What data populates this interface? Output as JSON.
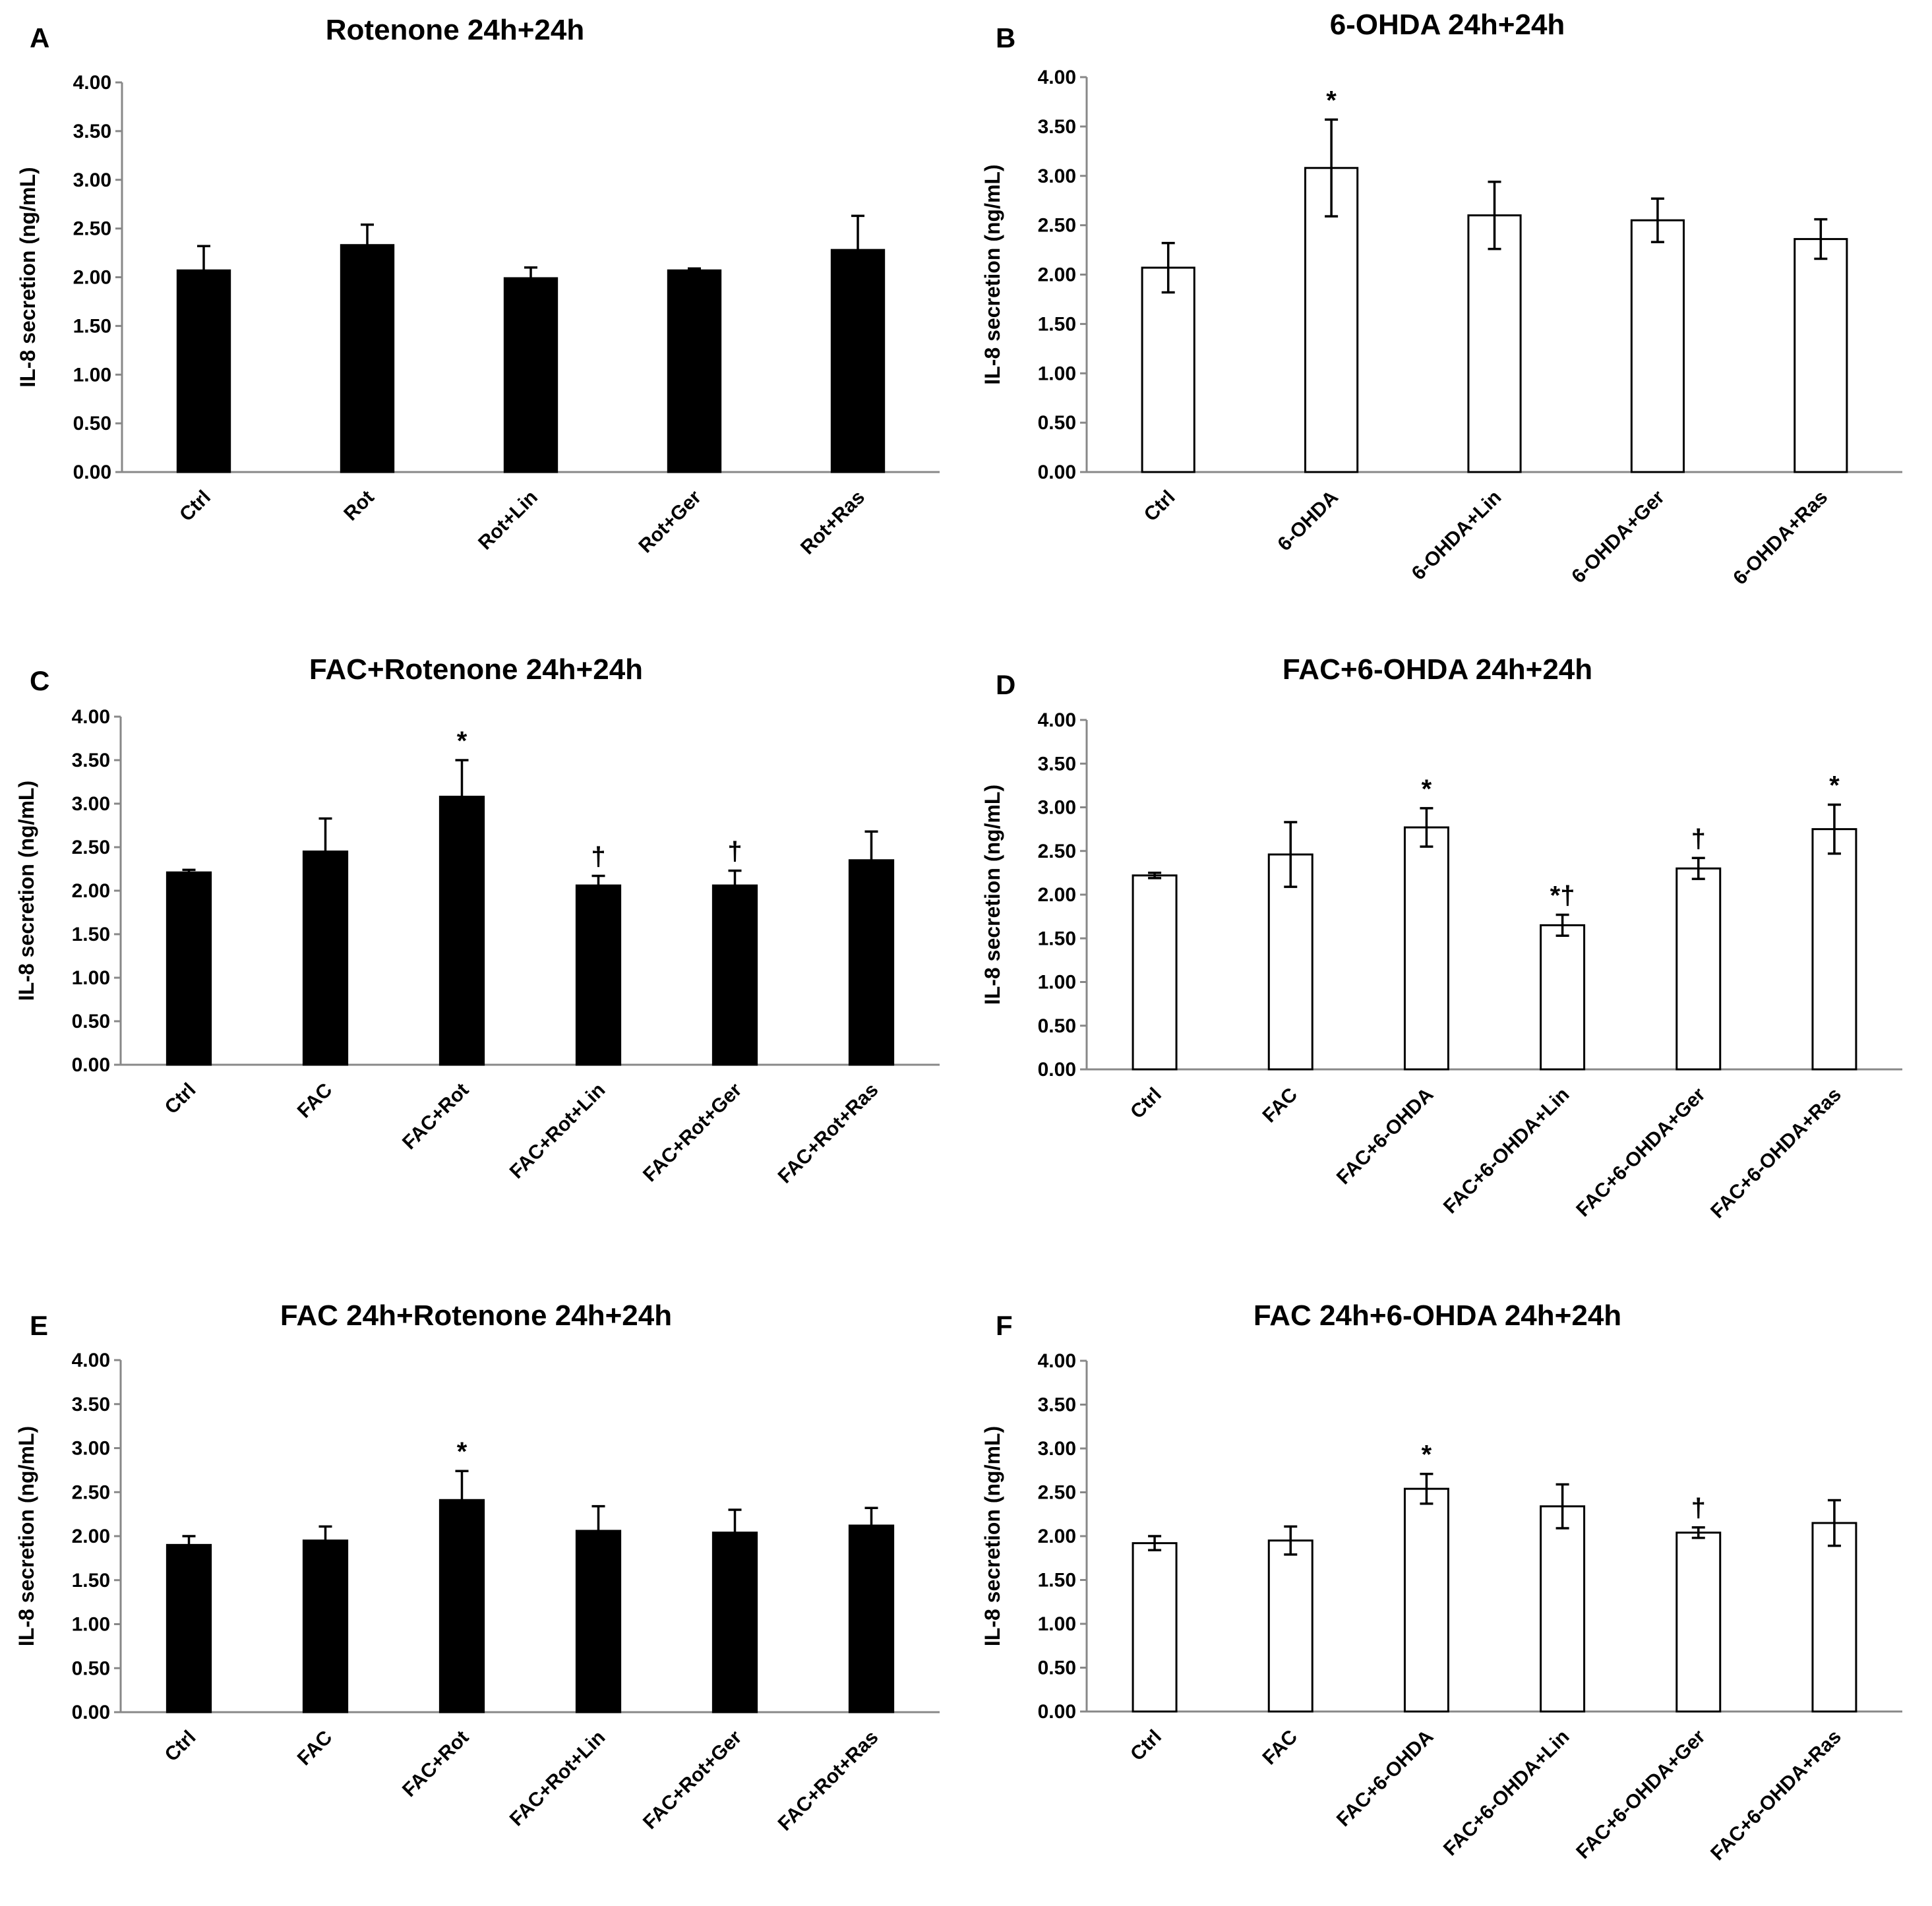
{
  "chart_data": [
    {
      "panel": "A",
      "type": "bar",
      "title": "Rotenone 24h+24h",
      "ylabel": "IL-8 secretion (ng/mL)",
      "ylim": [
        0,
        4
      ],
      "yticks": [
        "0.00",
        "0.50",
        "1.00",
        "1.50",
        "2.00",
        "2.50",
        "3.00",
        "3.50",
        "4.00"
      ],
      "bar_color": "#000000",
      "error_style": "upper",
      "categories": [
        "Ctrl",
        "Rot",
        "Rot+Lin",
        "Rot+Ger",
        "Rot+Ras"
      ],
      "values": [
        2.07,
        2.33,
        1.99,
        2.07,
        2.28
      ],
      "errors": [
        0.25,
        0.21,
        0.11,
        0.02,
        0.35
      ],
      "annotations": [
        "",
        "",
        "",
        "",
        ""
      ]
    },
    {
      "panel": "B",
      "type": "bar",
      "title": "6-OHDA 24h+24h",
      "ylabel": "IL-8 secretion (ng/mL)",
      "ylim": [
        0,
        4
      ],
      "yticks": [
        "0.00",
        "0.50",
        "1.00",
        "1.50",
        "2.00",
        "2.50",
        "3.00",
        "3.50",
        "4.00"
      ],
      "bar_color": "#ffffff",
      "error_style": "both",
      "categories": [
        "Ctrl",
        "6-OHDA",
        "6-OHDA+Lin",
        "6-OHDA+Ger",
        "6-OHDA+Ras"
      ],
      "values": [
        2.07,
        3.08,
        2.6,
        2.55,
        2.36
      ],
      "errors": [
        0.25,
        0.49,
        0.34,
        0.22,
        0.2
      ],
      "annotations": [
        "",
        "*",
        "",
        "",
        ""
      ]
    },
    {
      "panel": "C",
      "type": "bar",
      "title": "FAC+Rotenone 24h+24h",
      "ylabel": "IL-8 secretion (ng/mL)",
      "ylim": [
        0,
        4
      ],
      "yticks": [
        "0.00",
        "0.50",
        "1.00",
        "1.50",
        "2.00",
        "2.50",
        "3.00",
        "3.50",
        "4.00"
      ],
      "bar_color": "#000000",
      "error_style": "upper",
      "categories": [
        "Ctrl",
        "FAC",
        "FAC+Rot",
        "FAC+Rot+Lin",
        "FAC+Rot+Ger",
        "FAC+Rot+Ras"
      ],
      "values": [
        2.21,
        2.45,
        3.08,
        2.06,
        2.06,
        2.35
      ],
      "errors": [
        0.03,
        0.38,
        0.42,
        0.11,
        0.17,
        0.33
      ],
      "annotations": [
        "",
        "",
        "*",
        "†",
        "†",
        ""
      ]
    },
    {
      "panel": "D",
      "type": "bar",
      "title": "FAC+6-OHDA 24h+24h",
      "ylabel": "IL-8 secretion (ng/mL)",
      "ylim": [
        0,
        4
      ],
      "yticks": [
        "0.00",
        "0.50",
        "1.00",
        "1.50",
        "2.00",
        "2.50",
        "3.00",
        "3.50",
        "4.00"
      ],
      "bar_color": "#ffffff",
      "error_style": "both",
      "categories": [
        "Ctrl",
        "FAC",
        "FAC+6-OHDA",
        "FAC+6-OHDA+Lin",
        "FAC+6-OHDA+Ger",
        "FAC+6-OHDA+Ras"
      ],
      "values": [
        2.22,
        2.46,
        2.77,
        1.65,
        2.3,
        2.75
      ],
      "errors": [
        0.03,
        0.37,
        0.22,
        0.12,
        0.12,
        0.28
      ],
      "annotations": [
        "",
        "",
        "*",
        "*†",
        "†",
        "*"
      ]
    },
    {
      "panel": "E",
      "type": "bar",
      "title": "FAC 24h+Rotenone 24h+24h",
      "ylabel": "IL-8 secretion (ng/mL)",
      "ylim": [
        0,
        4
      ],
      "yticks": [
        "0.00",
        "0.50",
        "1.00",
        "1.50",
        "2.00",
        "2.50",
        "3.00",
        "3.50",
        "4.00"
      ],
      "bar_color": "#000000",
      "error_style": "upper",
      "categories": [
        "Ctrl",
        "FAC",
        "FAC+Rot",
        "FAC+Rot+Lin",
        "FAC+Rot+Ger",
        "FAC+Rot+Ras"
      ],
      "values": [
        1.9,
        1.95,
        2.41,
        2.06,
        2.04,
        2.12
      ],
      "errors": [
        0.1,
        0.16,
        0.33,
        0.28,
        0.26,
        0.2
      ],
      "annotations": [
        "",
        "",
        "*",
        "",
        "",
        ""
      ]
    },
    {
      "panel": "F",
      "type": "bar",
      "title": "FAC 24h+6-OHDA 24h+24h",
      "ylabel": "IL-8 secretion (ng/mL)",
      "ylim": [
        0,
        4
      ],
      "yticks": [
        "0.00",
        "0.50",
        "1.00",
        "1.50",
        "2.00",
        "2.50",
        "3.00",
        "3.50",
        "4.00"
      ],
      "bar_color": "#ffffff",
      "error_style": "both",
      "categories": [
        "Ctrl",
        "FAC",
        "FAC+6-OHDA",
        "FAC+6-OHDA+Lin",
        "FAC+6-OHDA+Ger",
        "FAC+6-OHDA+Ras"
      ],
      "values": [
        1.92,
        1.95,
        2.54,
        2.34,
        2.04,
        2.15
      ],
      "errors": [
        0.08,
        0.16,
        0.17,
        0.25,
        0.06,
        0.26
      ],
      "annotations": [
        "",
        "",
        "*",
        "",
        "†",
        ""
      ]
    }
  ]
}
